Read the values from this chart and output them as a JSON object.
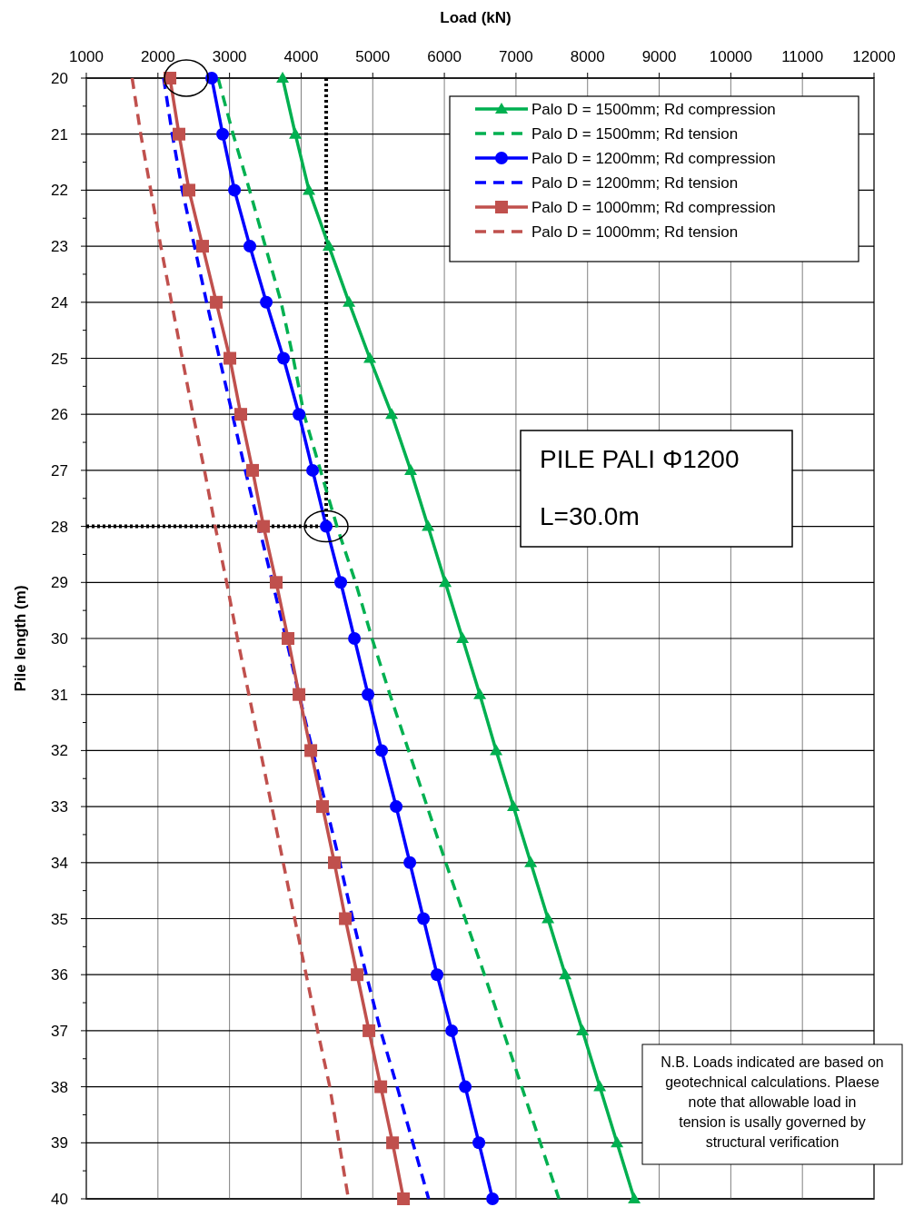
{
  "chart_data": {
    "type": "line",
    "xlabel": "Load (kN)",
    "ylabel": "Pile length (m)",
    "xlim": [
      1000,
      12000
    ],
    "xticks": [
      1000,
      2000,
      3000,
      4000,
      5000,
      6000,
      7000,
      8000,
      9000,
      10000,
      11000,
      12000
    ],
    "ylim": [
      40,
      20
    ],
    "yticks": [
      20,
      21,
      22,
      23,
      24,
      25,
      26,
      27,
      28,
      29,
      30,
      31,
      32,
      33,
      34,
      35,
      36,
      37,
      38,
      39,
      40
    ],
    "grid": true,
    "legend": "top right",
    "series": [
      {
        "name": "Palo D = 1500mm;  Rd compression",
        "color": "#00b050",
        "marker": "triangle",
        "line_style": "solid",
        "x": [
          3741,
          3919,
          4109,
          4388,
          4668,
          4959,
          5264,
          5530,
          5772,
          6013,
          6254,
          6495,
          6723,
          6964,
          7206,
          7447,
          7688,
          7929,
          8170,
          8411,
          8652
        ],
        "values": [
          20,
          21,
          22,
          23,
          24,
          25,
          26,
          27,
          28,
          29,
          30,
          31,
          32,
          33,
          34,
          35,
          36,
          37,
          38,
          39,
          40
        ]
      },
      {
        "name": "Palo D = 1500mm;  Rd tension",
        "color": "#00b050",
        "marker": "none",
        "line_style": "dashed",
        "x": [
          2840,
          3050,
          3280,
          3500,
          3720,
          3890,
          4040,
          4270,
          4500,
          4760,
          4990,
          5240,
          5500,
          5760,
          6020,
          6290,
          6560,
          6820,
          7080,
          7340,
          7600
        ],
        "values": [
          20,
          21,
          22,
          23,
          24,
          25,
          26,
          27,
          28,
          29,
          30,
          31,
          32,
          33,
          34,
          35,
          36,
          37,
          38,
          39,
          40
        ]
      },
      {
        "name": "Palo D = 1200mm;  Rd compression",
        "color": "#0000ff",
        "marker": "circle",
        "line_style": "solid",
        "x": [
          2751,
          2904,
          3069,
          3284,
          3513,
          3754,
          3970,
          4160,
          4350,
          4553,
          4744,
          4934,
          5124,
          5327,
          5518,
          5708,
          5898,
          6102,
          6292,
          6482,
          6673
        ],
        "values": [
          20,
          21,
          22,
          23,
          24,
          25,
          26,
          27,
          28,
          29,
          30,
          31,
          32,
          33,
          34,
          35,
          36,
          37,
          38,
          39,
          40
        ]
      },
      {
        "name": "Palo D = 1200mm;  Rd tension",
        "color": "#0000ff",
        "marker": "none",
        "line_style": "dashed",
        "x": [
          2080,
          2200,
          2340,
          2510,
          2680,
          2860,
          3040,
          3220,
          3410,
          3600,
          3790,
          3970,
          4160,
          4350,
          4540,
          4720,
          4910,
          5110,
          5340,
          5560,
          5780
        ],
        "values": [
          20,
          21,
          22,
          23,
          24,
          25,
          26,
          27,
          28,
          29,
          30,
          31,
          32,
          33,
          34,
          35,
          36,
          37,
          38,
          39,
          40
        ]
      },
      {
        "name": "Palo D = 1000mm;  Rd compression",
        "color": "#c0504d",
        "marker": "square",
        "line_style": "solid",
        "x": [
          2168,
          2294,
          2434,
          2624,
          2815,
          3005,
          3157,
          3322,
          3475,
          3652,
          3817,
          3970,
          4135,
          4299,
          4464,
          4617,
          4782,
          4947,
          5112,
          5277,
          5429
        ],
        "values": [
          20,
          21,
          22,
          23,
          24,
          25,
          26,
          27,
          28,
          29,
          30,
          31,
          32,
          33,
          34,
          35,
          36,
          37,
          38,
          39,
          40
        ]
      },
      {
        "name": "Palo D = 1000mm;  Rd tension",
        "color": "#c0504d",
        "marker": "none",
        "line_style": "dashed",
        "x": [
          1640,
          1760,
          1900,
          2040,
          2190,
          2340,
          2490,
          2650,
          2800,
          2960,
          3110,
          3270,
          3430,
          3590,
          3750,
          3910,
          4070,
          4230,
          4400,
          4530,
          4660
        ],
        "values": [
          20,
          21,
          22,
          23,
          24,
          25,
          26,
          27,
          28,
          29,
          30,
          31,
          32,
          33,
          34,
          35,
          36,
          37,
          38,
          39,
          40
        ]
      }
    ],
    "ref_lines": [
      {
        "axis": "x",
        "value": 4350,
        "color": "#000000",
        "line_style": "dotted"
      },
      {
        "axis": "y",
        "value": 28,
        "color": "#000000",
        "line_style": "dotted"
      }
    ],
    "annotations": [
      "PILE PALI Φ1200",
      "L=30.0m",
      "N.B. Loads indicated are based on geotechnical calculations. Plaese note that allowable load in tension is usally governed by structural verification"
    ]
  }
}
